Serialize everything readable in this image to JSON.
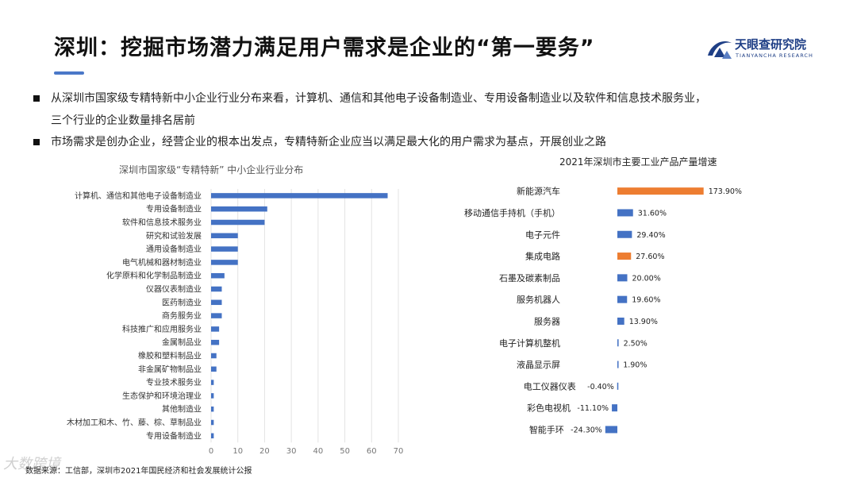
{
  "header": {
    "title": "深圳：挖掘市场潜力满足用户需求是企业的“第一要务”",
    "brand_name": "天眼查研究院",
    "brand_en": "TIANYANCHA RESEARCH",
    "accent": "#4a78c8",
    "brand_color": "#1f3f86"
  },
  "bullets": [
    "从深圳市国家级专精特新中小企业行业分布来看，计算机、通信和其他电子设备制造业、专用设备制造业以及软件和信息技术服务业，",
    "三个行业的企业数量排名居前",
    "市场需求是创办企业，经营企业的根本出发点，专精特新企业应当以满足最大化的用户需求为基点，开展创业之路"
  ],
  "source": "数据来源：工信部，深圳市2021年国民经济和社会发展统计公报",
  "watermark": "大数跨境",
  "chart_data": [
    {
      "type": "bar",
      "orientation": "horizontal",
      "title": "深圳市国家级“专精特新” 中小企业行业分布",
      "categories": [
        "计算机、通信和其他电子设备制造业",
        "专用设备制造业",
        "软件和信息技术服务业",
        "研究和试验发展",
        "通用设备制造业",
        "电气机械和器材制造业",
        "化学原料和化学制品制造业",
        "仪器仪表制造业",
        "医药制造业",
        "商务服务业",
        "科技推广和应用服务业",
        "金属制品业",
        "橡胶和塑料制品业",
        "非金属矿物制品业",
        "专业技术服务业",
        "生态保护和环境治理业",
        "其他制造业",
        "木材加工和木、竹、藤、棕、草制品业",
        "专用设备制造业"
      ],
      "values": [
        66,
        21,
        20,
        10,
        10,
        10,
        5,
        4,
        4,
        4,
        3,
        3,
        2,
        2,
        1,
        1,
        1,
        1,
        1
      ],
      "xlim": [
        0,
        70
      ],
      "xticks": [
        0,
        10,
        20,
        30,
        40,
        50,
        60,
        70
      ],
      "grid": true,
      "bar_color": "#4472c4"
    },
    {
      "type": "bar",
      "orientation": "horizontal",
      "title": "2021年深圳市主要工业产品产量增速",
      "categories": [
        "新能源汽车",
        "移动通信手持机（手机）",
        "电子元件",
        "集成电路",
        "石墨及碳素制品",
        "服务机器人",
        "服务器",
        "电子计算机整机",
        "液晶显示屏",
        "电工仪器仪表",
        "彩色电视机",
        "智能手环"
      ],
      "values": [
        173.9,
        31.6,
        29.4,
        27.6,
        20.0,
        19.6,
        13.9,
        2.5,
        1.9,
        -0.4,
        -11.1,
        -24.3
      ],
      "labels": [
        "173.90%",
        "31.60%",
        "29.40%",
        "27.60%",
        "20.00%",
        "19.60%",
        "13.90%",
        "2.50%",
        "1.90%",
        "-0.40%",
        "-11.10%",
        "-24.30%"
      ],
      "highlight": [
        0,
        3
      ],
      "bar_color": "#4472c4",
      "highlight_color": "#ed7d31"
    }
  ]
}
